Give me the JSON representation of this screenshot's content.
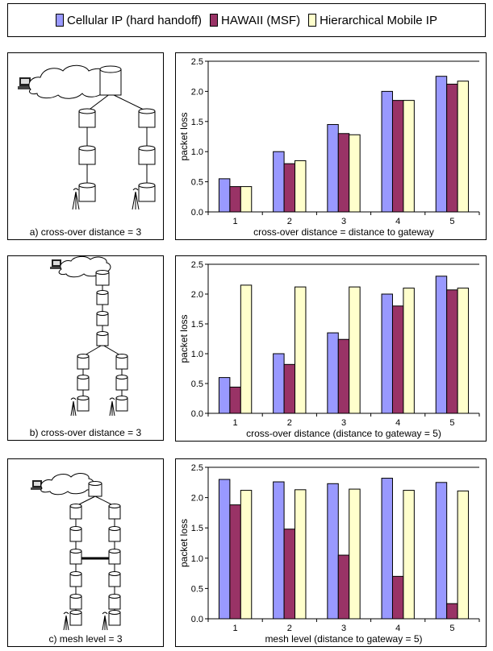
{
  "legend": {
    "items": [
      {
        "label": "Cellular IP (hard handoff)",
        "color": "#9999ff"
      },
      {
        "label": "HAWAII (MSF)",
        "color": "#993366"
      },
      {
        "label": "Hierarchical Mobile IP",
        "color": "#ffffcc"
      }
    ]
  },
  "diagrams": [
    {
      "caption": "a) cross-over distance = 3"
    },
    {
      "caption": "b) cross-over distance = 3"
    },
    {
      "caption": "c) mesh level = 3"
    }
  ],
  "chart_data": [
    {
      "type": "bar",
      "categories": [
        "1",
        "2",
        "3",
        "4",
        "5"
      ],
      "series": [
        {
          "name": "Cellular IP (hard handoff)",
          "values": [
            0.55,
            1.0,
            1.45,
            2.0,
            2.25
          ]
        },
        {
          "name": "HAWAII (MSF)",
          "values": [
            0.42,
            0.8,
            1.3,
            1.85,
            2.12
          ]
        },
        {
          "name": "Hierarchical Mobile IP",
          "values": [
            0.42,
            0.85,
            1.28,
            1.85,
            2.17
          ]
        }
      ],
      "xlabel": "cross-over distance = distance to gateway",
      "ylabel": "packet loss",
      "ylim": [
        0,
        2.5
      ],
      "yticks": [
        "0.0",
        "0.5",
        "1.0",
        "1.5",
        "2.0",
        "2.5"
      ],
      "grid": "top line only"
    },
    {
      "type": "bar",
      "categories": [
        "1",
        "2",
        "3",
        "4",
        "5"
      ],
      "series": [
        {
          "name": "Cellular IP (hard handoff)",
          "values": [
            0.6,
            1.0,
            1.35,
            2.0,
            2.3
          ]
        },
        {
          "name": "HAWAII (MSF)",
          "values": [
            0.44,
            0.82,
            1.24,
            1.8,
            2.07
          ]
        },
        {
          "name": "Hierarchical Mobile IP",
          "values": [
            2.15,
            2.12,
            2.12,
            2.1,
            2.1
          ]
        }
      ],
      "xlabel": "cross-over distance (distance to gateway = 5)",
      "ylabel": "packet loss",
      "ylim": [
        0,
        2.5
      ],
      "yticks": [
        "0.0",
        "0.5",
        "1.0",
        "1.5",
        "2.0",
        "2.5"
      ],
      "grid": "top line only"
    },
    {
      "type": "bar",
      "categories": [
        "1",
        "2",
        "3",
        "4",
        "5"
      ],
      "series": [
        {
          "name": "Cellular IP (hard handoff)",
          "values": [
            2.3,
            2.26,
            2.23,
            2.32,
            2.25
          ]
        },
        {
          "name": "HAWAII (MSF)",
          "values": [
            1.88,
            1.48,
            1.05,
            0.7,
            0.25
          ]
        },
        {
          "name": "Hierarchical Mobile IP",
          "values": [
            2.12,
            2.13,
            2.14,
            2.12,
            2.11
          ]
        }
      ],
      "xlabel": "mesh level (distance to gateway = 5)",
      "ylabel": "packet loss",
      "ylim": [
        0,
        2.5
      ],
      "yticks": [
        "0.0",
        "0.5",
        "1.0",
        "1.5",
        "2.0",
        "2.5"
      ],
      "grid": "top line only"
    }
  ]
}
